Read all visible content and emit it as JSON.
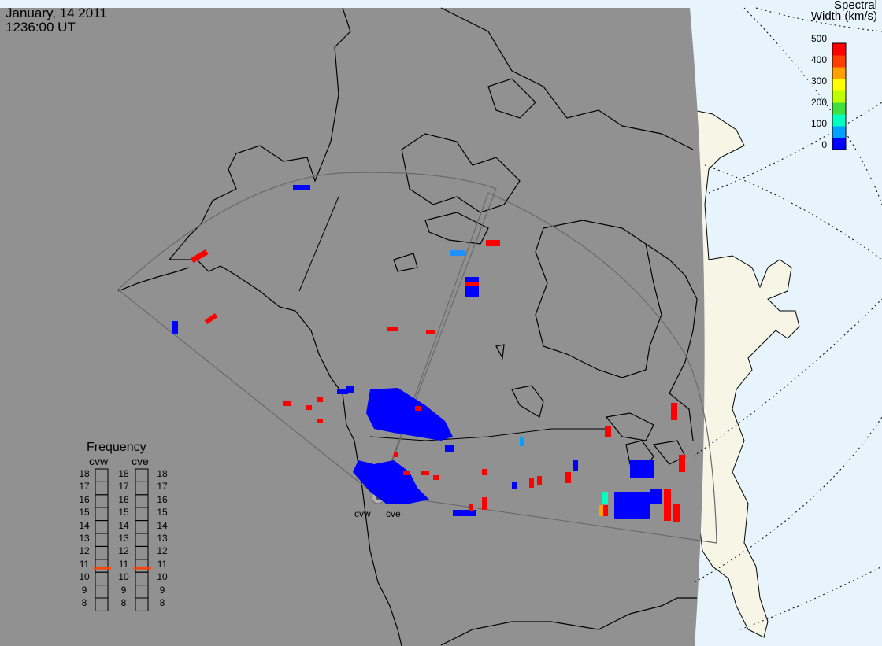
{
  "header": {
    "date": "January, 14 2011",
    "time": "1236:00 UT"
  },
  "colorbar": {
    "title_line1": "Spectral",
    "title_line2": "Width (km/s)",
    "ticks": [
      "500",
      "400",
      "300",
      "200",
      "100",
      "0"
    ],
    "colors": [
      "#0000ff",
      "#00a0ff",
      "#00ffc0",
      "#40e040",
      "#c0ff00",
      "#ffff00",
      "#ffa000",
      "#ff4000",
      "#ff0000"
    ]
  },
  "frequency": {
    "title": "Frequency",
    "channels": [
      "cvw",
      "cve"
    ],
    "scale": [
      "18",
      "17",
      "16",
      "15",
      "14",
      "13",
      "12",
      "11",
      "10",
      "9",
      "8"
    ],
    "marker_value": 10.8,
    "marker_color": "#ff4000"
  },
  "radars": [
    "cvw",
    "cve"
  ],
  "colors": {
    "ocean_dark": "#919191",
    "day_side": "#e8f4fc",
    "land_day": "#f7f5e6",
    "coast": "#000000",
    "fov": "#6a6a6a"
  }
}
